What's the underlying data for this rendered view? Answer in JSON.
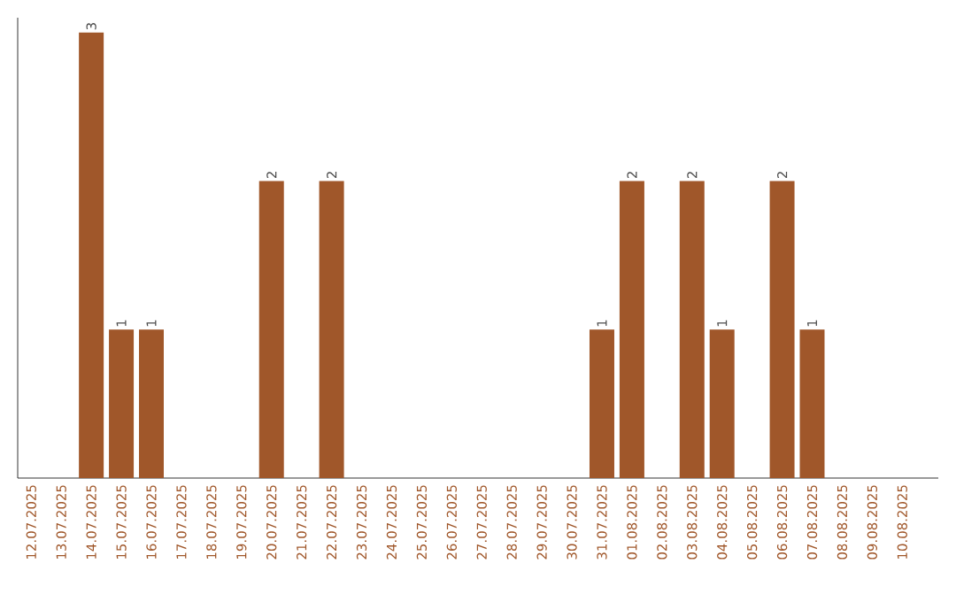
{
  "chart_data": {
    "type": "bar",
    "categories": [
      "12.07.2025",
      "13.07.2025",
      "14.07.2025",
      "15.07.2025",
      "16.07.2025",
      "17.07.2025",
      "18.07.2025",
      "19.07.2025",
      "20.07.2025",
      "21.07.2025",
      "22.07.2025",
      "23.07.2025",
      "24.07.2025",
      "25.07.2025",
      "26.07.2025",
      "27.07.2025",
      "28.07.2025",
      "29.07.2025",
      "30.07.2025",
      "31.07.2025",
      "01.08.2025",
      "02.08.2025",
      "03.08.2025",
      "04.08.2025",
      "05.08.2025",
      "06.08.2025",
      "07.08.2025",
      "08.08.2025",
      "09.08.2025",
      "10.08.2025"
    ],
    "values": [
      0,
      0,
      3,
      1,
      1,
      0,
      0,
      0,
      2,
      0,
      2,
      0,
      0,
      0,
      0,
      0,
      0,
      0,
      0,
      1,
      2,
      0,
      2,
      1,
      0,
      2,
      1,
      0,
      0,
      0
    ],
    "value_labels": [
      null,
      null,
      "3",
      "1",
      "1",
      null,
      null,
      null,
      "2",
      null,
      "2",
      null,
      null,
      null,
      null,
      null,
      null,
      null,
      null,
      "1",
      "2",
      null,
      "2",
      "1",
      null,
      "2",
      "1",
      null,
      null,
      null
    ],
    "color": "#a0572a",
    "ylim": [
      0,
      3.1
    ],
    "tick_labels": "x"
  }
}
